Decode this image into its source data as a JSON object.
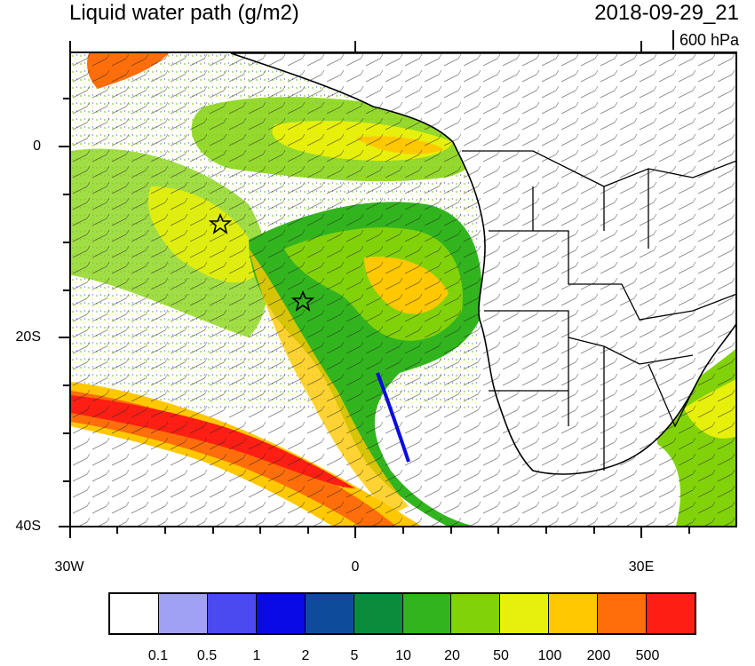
{
  "header": {
    "title": "Liquid water path (g/m2)",
    "datetime": "2018-09-29_21",
    "level": "600 hPa"
  },
  "map": {
    "region": "Southeast Atlantic / Southern Africa",
    "lat_labels": [
      "0",
      "20S",
      "40S"
    ],
    "lon_labels": [
      "30W",
      "0",
      "30E"
    ],
    "markers": [
      {
        "symbol": "star",
        "lat": -8,
        "lon": -14.5
      },
      {
        "symbol": "star",
        "lat": -16,
        "lon": -5.5
      }
    ]
  },
  "colorbar": {
    "labels": [
      "0.1",
      "0.5",
      "1",
      "2",
      "5",
      "10",
      "20",
      "50",
      "100",
      "200",
      "500"
    ],
    "colors": [
      "#ffffff",
      "#a0a0f5",
      "#4a4af0",
      "#0a0ae6",
      "#0f4b9b",
      "#0a8c3c",
      "#32b41e",
      "#82d20a",
      "#e6f00a",
      "#ffc800",
      "#ff6e0a",
      "#ff1e14"
    ]
  }
}
